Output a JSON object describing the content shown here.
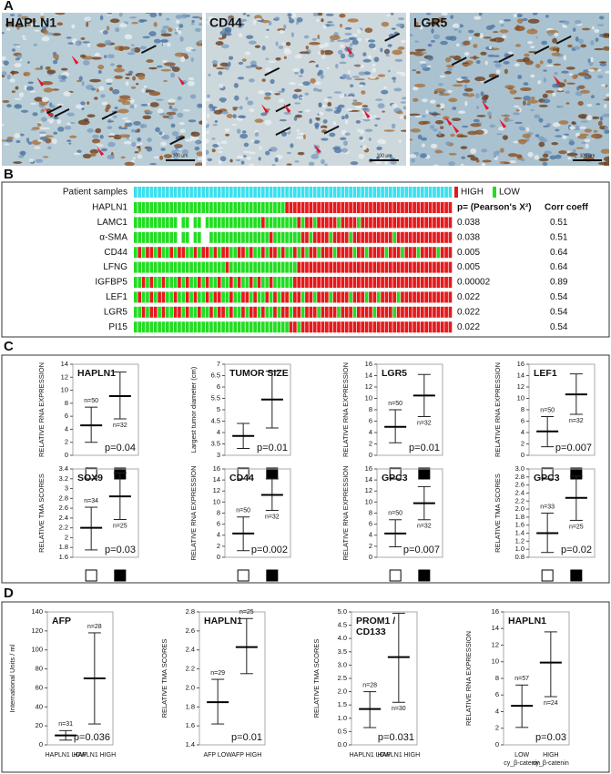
{
  "panel_a": {
    "label": "A",
    "images": [
      {
        "label": "HAPLN1",
        "scale": "100 μm"
      },
      {
        "label": "CD44",
        "scale": "100 μm"
      },
      {
        "label": "LGR5",
        "scale": "100 μm"
      }
    ]
  },
  "panel_b": {
    "label": "B",
    "samples_label": "Patient samples",
    "sample_color": "#3de0ee",
    "legend": [
      {
        "name": "HIGH",
        "color": "#e41a1c"
      },
      {
        "name": "LOW",
        "color": "#22dd22"
      }
    ],
    "p_header": "p= (Pearson's X²)",
    "corr_header": "Corr coeff",
    "rows": [
      {
        "name": "HAPLN1",
        "cells": [
          0,
          0,
          0,
          0,
          0,
          0,
          0,
          0,
          0,
          0,
          0,
          0,
          0,
          0,
          0,
          0,
          0,
          0,
          0,
          0,
          0,
          0,
          0,
          0,
          0,
          0,
          0,
          0,
          0,
          0,
          0,
          0,
          0,
          0,
          0,
          0,
          0,
          0,
          1,
          1,
          1,
          1,
          1,
          1,
          1,
          1,
          1,
          1,
          1,
          1,
          1,
          1,
          1,
          1,
          1,
          1,
          1,
          1,
          1,
          1,
          1,
          1,
          1,
          1,
          1,
          1,
          1,
          1,
          1,
          1,
          1,
          1,
          1,
          1,
          1,
          1,
          1,
          1,
          1,
          1
        ]
      },
      {
        "name": "LAMC1",
        "p": 0.038,
        "corr": 0.51,
        "cells": [
          0,
          0,
          0,
          0,
          0,
          0,
          0,
          0,
          0,
          0,
          0,
          null,
          0,
          0,
          null,
          0,
          0,
          null,
          0,
          0,
          0,
          0,
          0,
          0,
          0,
          0,
          0,
          0,
          0,
          0,
          0,
          0,
          1,
          0,
          0,
          0,
          0,
          0,
          0,
          0,
          0,
          1,
          0,
          1,
          1,
          0,
          1,
          1,
          1,
          1,
          1,
          0,
          1,
          1,
          1,
          1,
          0,
          1,
          1,
          1,
          1,
          1,
          1,
          1,
          1,
          1,
          1,
          1,
          1,
          1,
          1,
          1,
          1,
          1,
          1,
          1,
          1,
          1,
          1,
          1
        ]
      },
      {
        "name": "α-SMA",
        "p": 0.038,
        "corr": 0.51,
        "cells": [
          0,
          0,
          0,
          0,
          0,
          0,
          0,
          0,
          0,
          0,
          0,
          null,
          0,
          0,
          null,
          0,
          0,
          null,
          null,
          0,
          0,
          0,
          0,
          0,
          0,
          0,
          0,
          0,
          0,
          0,
          0,
          0,
          0,
          0,
          1,
          0,
          0,
          0,
          0,
          0,
          0,
          0,
          1,
          1,
          0,
          1,
          1,
          1,
          1,
          0,
          1,
          1,
          1,
          1,
          0,
          1,
          1,
          1,
          1,
          1,
          1,
          1,
          1,
          1,
          1,
          0,
          1,
          1,
          1,
          1,
          1,
          1,
          1,
          1,
          1,
          1,
          1,
          1,
          1,
          1
        ]
      },
      {
        "name": "CD44",
        "p": 0.005,
        "corr": 0.64,
        "cells": [
          0,
          1,
          0,
          1,
          1,
          0,
          1,
          0,
          0,
          1,
          0,
          1,
          1,
          0,
          0,
          1,
          0,
          1,
          1,
          0,
          1,
          0,
          1,
          1,
          0,
          0,
          1,
          1,
          0,
          1,
          0,
          0,
          1,
          0,
          1,
          1,
          0,
          1,
          0,
          0,
          1,
          0,
          1,
          0,
          1,
          1,
          0,
          1,
          1,
          1,
          0,
          1,
          1,
          1,
          1,
          0,
          1,
          1,
          0,
          1,
          1,
          1,
          1,
          0,
          1,
          1,
          1,
          0,
          1,
          1,
          1,
          0,
          1,
          1,
          1,
          1,
          0,
          1,
          1,
          1
        ]
      },
      {
        "name": "LFNG",
        "p": 0.005,
        "corr": 0.64,
        "cells": [
          0,
          0,
          0,
          0,
          0,
          0,
          0,
          0,
          0,
          0,
          0,
          0,
          0,
          0,
          0,
          0,
          0,
          0,
          0,
          0,
          0,
          0,
          0,
          1,
          0,
          0,
          0,
          0,
          0,
          0,
          0,
          0,
          0,
          0,
          0,
          0,
          0,
          0,
          0,
          0,
          0,
          1,
          1,
          1,
          1,
          1,
          1,
          1,
          1,
          1,
          1,
          1,
          1,
          1,
          1,
          1,
          1,
          1,
          1,
          1,
          1,
          1,
          1,
          1,
          1,
          1,
          1,
          1,
          1,
          1,
          1,
          1,
          1,
          1,
          1,
          1,
          1,
          1,
          1,
          1
        ]
      },
      {
        "name": "IGFBP5",
        "p": 2e-05,
        "corr": 0.89,
        "cells": [
          0,
          0,
          1,
          0,
          1,
          0,
          0,
          1,
          0,
          0,
          0,
          1,
          0,
          1,
          0,
          0,
          1,
          0,
          1,
          0,
          0,
          1,
          0,
          0,
          1,
          0,
          1,
          0,
          0,
          1,
          0,
          1,
          0,
          0,
          1,
          0,
          0,
          0,
          0,
          0,
          1,
          1,
          1,
          1,
          1,
          1,
          1,
          1,
          1,
          1,
          1,
          1,
          1,
          1,
          1,
          1,
          1,
          1,
          1,
          1,
          1,
          1,
          1,
          1,
          1,
          1,
          1,
          1,
          1,
          1,
          1,
          1,
          1,
          1,
          1,
          1,
          1,
          1,
          1,
          1
        ]
      },
      {
        "name": "LEF1",
        "p": 0.022,
        "corr": 0.54,
        "cells": [
          0,
          1,
          0,
          0,
          1,
          0,
          1,
          1,
          0,
          0,
          1,
          0,
          0,
          1,
          0,
          1,
          0,
          0,
          1,
          0,
          1,
          1,
          0,
          0,
          1,
          0,
          0,
          1,
          1,
          0,
          1,
          0,
          0,
          1,
          0,
          1,
          0,
          1,
          1,
          0,
          1,
          1,
          0,
          1,
          1,
          0,
          1,
          1,
          1,
          0,
          1,
          1,
          1,
          1,
          0,
          1,
          1,
          1,
          0,
          1,
          1,
          0,
          1,
          1,
          1,
          1,
          0,
          1,
          1,
          1,
          1,
          1,
          1,
          1,
          1,
          1,
          1,
          1,
          1,
          1
        ]
      },
      {
        "name": "LGR5",
        "p": 0.022,
        "corr": 0.54,
        "cells": [
          0,
          0,
          1,
          0,
          1,
          1,
          0,
          1,
          0,
          0,
          1,
          1,
          0,
          1,
          0,
          0,
          1,
          0,
          0,
          1,
          0,
          1,
          1,
          0,
          1,
          0,
          0,
          1,
          0,
          1,
          1,
          0,
          1,
          0,
          0,
          1,
          0,
          1,
          1,
          0,
          1,
          1,
          0,
          1,
          1,
          1,
          0,
          1,
          1,
          1,
          1,
          0,
          1,
          1,
          1,
          0,
          1,
          1,
          1,
          1,
          0,
          1,
          1,
          1,
          1,
          0,
          1,
          1,
          1,
          1,
          1,
          1,
          1,
          1,
          1,
          1,
          1,
          1,
          1,
          1
        ]
      },
      {
        "name": "PI15",
        "p": 0.022,
        "corr": 0.54,
        "cells": [
          0,
          0,
          0,
          0,
          0,
          0,
          0,
          0,
          0,
          0,
          0,
          0,
          0,
          0,
          0,
          0,
          0,
          0,
          0,
          0,
          0,
          0,
          0,
          0,
          0,
          0,
          0,
          0,
          0,
          0,
          0,
          0,
          0,
          0,
          0,
          0,
          0,
          0,
          0,
          1,
          1,
          0,
          1,
          1,
          1,
          1,
          1,
          1,
          1,
          1,
          1,
          1,
          1,
          1,
          1,
          1,
          1,
          1,
          1,
          1,
          1,
          1,
          1,
          1,
          1,
          1,
          1,
          1,
          1,
          1,
          1,
          1,
          1,
          1,
          1,
          1,
          1,
          1,
          1,
          1
        ]
      }
    ]
  },
  "panel_c": {
    "label": "C"
  },
  "panel_d": {
    "label": "D"
  },
  "chart_data": [
    {
      "type": "errorbar",
      "title": "HAPLN1",
      "ylabel": "RELATIVE RNA EXPRESSION",
      "ylim": [
        0,
        14
      ],
      "yticks": [
        0,
        2,
        4,
        6,
        8,
        10,
        12,
        14
      ],
      "values": [
        4.6,
        9.1
      ],
      "err_low": [
        2.0,
        5.6
      ],
      "err_high": [
        7.4,
        12.8
      ],
      "n_labels": [
        "n=50",
        "n=32"
      ],
      "p_label": "p=0.04"
    },
    {
      "type": "errorbar",
      "title": "TUMOR SIZE",
      "ylabel": "Largest tumor diameter (cm)",
      "ylim": [
        3,
        7
      ],
      "yticks": [
        3,
        3.5,
        4,
        4.5,
        5,
        5.5,
        6,
        6.5,
        7
      ],
      "values": [
        3.85,
        5.45
      ],
      "err_low": [
        3.3,
        4.2
      ],
      "err_high": [
        4.4,
        6.7
      ],
      "p_label": "p=0.01"
    },
    {
      "type": "errorbar",
      "title": "LGR5",
      "ylabel": "RELATIVE RNA EXPRESSION",
      "ylim": [
        0,
        16
      ],
      "yticks": [
        0,
        2,
        4,
        6,
        8,
        10,
        12,
        14,
        16
      ],
      "values": [
        5.0,
        10.5
      ],
      "err_low": [
        2.2,
        6.8
      ],
      "err_high": [
        8.0,
        14.2
      ],
      "n_labels": [
        "n=50",
        "n=32"
      ],
      "p_label": "p=0.01"
    },
    {
      "type": "errorbar",
      "title": "LEF1",
      "ylabel": "RELATIVE RNA EXPRESSION",
      "ylim": [
        0,
        16
      ],
      "yticks": [
        0,
        2,
        4,
        6,
        8,
        10,
        12,
        14,
        16
      ],
      "values": [
        4.2,
        10.7
      ],
      "err_low": [
        1.5,
        7.2
      ],
      "err_high": [
        6.8,
        14.3
      ],
      "n_labels": [
        "n=50",
        "n=32"
      ],
      "p_label": "p=0.007"
    },
    {
      "type": "errorbar",
      "title": "SOX9",
      "ylabel": "RELATIVE TMA SCORES",
      "ylim": [
        1.6,
        3.4
      ],
      "yticks": [
        1.6,
        1.8,
        2,
        2.2,
        2.4,
        2.6,
        2.8,
        3,
        3.2,
        3.4
      ],
      "values": [
        2.2,
        2.84
      ],
      "err_low": [
        1.75,
        2.37
      ],
      "err_high": [
        2.62,
        3.32
      ],
      "n_labels": [
        "n=34",
        "n=25"
      ],
      "p_label": "p=0.03"
    },
    {
      "type": "errorbar",
      "title": "CD44",
      "ylabel": "RELATIVE RNA EXPRESSION",
      "ylim": [
        0,
        16
      ],
      "yticks": [
        0,
        2,
        4,
        6,
        8,
        10,
        12,
        14,
        16
      ],
      "values": [
        4.3,
        11.3
      ],
      "err_low": [
        1.2,
        8.5
      ],
      "err_high": [
        7.3,
        14.2
      ],
      "n_labels": [
        "n=50",
        "n=32"
      ],
      "p_label": "p=0.002"
    },
    {
      "type": "errorbar",
      "title": "GPC3",
      "ylabel": "RELATIVE RNA EXPRESSION",
      "ylim": [
        0,
        16
      ],
      "yticks": [
        0,
        2,
        4,
        6,
        8,
        10,
        12,
        14,
        16
      ],
      "values": [
        4.3,
        9.8
      ],
      "err_low": [
        1.9,
        6.8
      ],
      "err_high": [
        6.8,
        12.8
      ],
      "n_labels": [
        "n=50",
        "n=32"
      ],
      "p_label": "p=0.007"
    },
    {
      "type": "errorbar",
      "title": "GPC3",
      "ylabel": "RELATIVE TMA SCORES",
      "ylim": [
        0.8,
        3
      ],
      "yticks": [
        0.8,
        {
          "value": 1,
          "label": "1.0"
        },
        1.2,
        1.4,
        1.6,
        1.8,
        {
          "value": 2,
          "label": "2.0"
        },
        2.2,
        2.4,
        2.6,
        2.8,
        {
          "value": 3,
          "label": "3.0"
        }
      ],
      "values": [
        1.4,
        2.28
      ],
      "err_low": [
        0.92,
        1.72
      ],
      "err_high": [
        1.9,
        2.82
      ],
      "n_labels": [
        "n=33",
        "n=25"
      ],
      "p_label": "p=0.02"
    },
    {
      "type": "errorbar",
      "title": "AFP",
      "ylabel": "International Units / ml",
      "ylim": [
        0,
        140
      ],
      "yticks": [
        0,
        20,
        40,
        60,
        80,
        100,
        120,
        140
      ],
      "categories": [
        "HAPLN1 LOW",
        "HAPLN1 HIGH"
      ],
      "values": [
        10,
        70
      ],
      "err_low": [
        5,
        22
      ],
      "err_high": [
        15,
        118
      ],
      "n_labels": [
        "n=31",
        "n=28"
      ],
      "p_label": "p=0.036"
    },
    {
      "type": "errorbar",
      "title": "HAPLN1",
      "ylabel": "RELATIVE TMA SCORES",
      "ylim": [
        1.4,
        2.8
      ],
      "yticks": [
        1.4,
        1.6,
        1.8,
        {
          "value": 2,
          "label": "2.0"
        },
        2.2,
        2.4,
        2.6,
        2.8
      ],
      "categories": [
        "AFP LOW",
        "AFP HIGH"
      ],
      "values": [
        1.85,
        2.43
      ],
      "err_low": [
        1.62,
        2.15
      ],
      "err_high": [
        2.09,
        2.73
      ],
      "n_labels": [
        "n=29",
        "n=25"
      ],
      "p_label": "p=0.01"
    },
    {
      "type": "errorbar",
      "title": "PROM1 /",
      "subtitle": "CD133",
      "ylabel": "RELATIVE TMA SCORES",
      "ylim": [
        0,
        5
      ],
      "yticks": [
        {
          "value": 0,
          "label": "0.0"
        },
        0.5,
        {
          "value": 1,
          "label": "1.0"
        },
        1.5,
        {
          "value": 2,
          "label": "2.0"
        },
        2.5,
        {
          "value": 3,
          "label": "3.0"
        },
        3.5,
        {
          "value": 4,
          "label": "4.0"
        },
        4.5,
        {
          "value": 5,
          "label": "5.0"
        }
      ],
      "categories": [
        "HAPLN1 LOW",
        "HAPLN1 HIGH"
      ],
      "values": [
        1.35,
        3.3
      ],
      "err_low": [
        0.65,
        1.6
      ],
      "err_high": [
        2.0,
        4.95
      ],
      "n_labels": [
        "n=28",
        "n=30"
      ],
      "p_label": "p=0.031"
    },
    {
      "type": "errorbar",
      "title": "HAPLN1",
      "ylabel": "RELATIVE RNA EXPRESSION",
      "ylim": [
        0,
        16
      ],
      "yticks": [
        0,
        2,
        4,
        6,
        8,
        10,
        12,
        14,
        16
      ],
      "categories": [
        "LOW",
        "HIGH"
      ],
      "categories_line2": [
        "cy_β-catenin",
        "cy_β-catenin"
      ],
      "values": [
        4.7,
        9.9
      ],
      "err_low": [
        2.1,
        5.8
      ],
      "err_high": [
        7.2,
        13.6
      ],
      "n_labels": [
        "n=57",
        "n=24"
      ],
      "p_label": "p=0.03"
    }
  ]
}
